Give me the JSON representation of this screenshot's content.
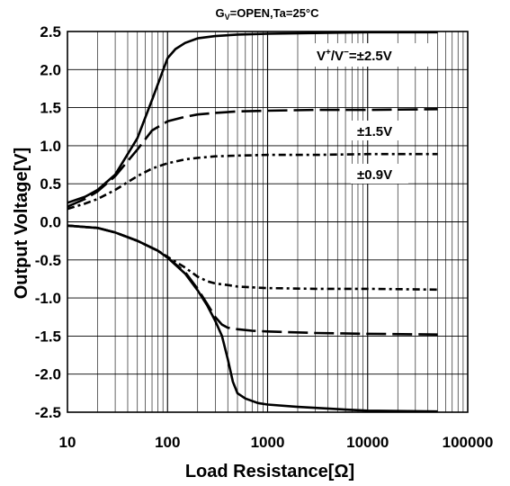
{
  "chart_data": {
    "type": "line",
    "title": "",
    "subtitle_main": "G",
    "subtitle_sub": "V",
    "subtitle_rest": "=OPEN,Ta=25°C",
    "xlabel": "Load Resistance[Ω]",
    "ylabel": "Output Voltage[V]",
    "xscale": "log",
    "xlim": [
      10,
      100000
    ],
    "ylim": [
      -2.5,
      2.5
    ],
    "x_ticks": [
      "10",
      "100",
      "1000",
      "10000",
      "100000"
    ],
    "y_ticks": [
      "2.5",
      "2.0",
      "1.5",
      "1.0",
      "0.5",
      "0.0",
      "-0.5",
      "-1.0",
      "-1.5",
      "-2.0",
      "-2.5"
    ],
    "grid": true,
    "annotations": {
      "supply_prefix": "V",
      "supply_sup1": "+",
      "supply_mid": "/V",
      "supply_sup2": "−",
      "supply_rest": "=±2.5V",
      "label_15": "±1.5V",
      "label_09": "±0.9V"
    },
    "series": [
      {
        "style": "solid",
        "x": [
          10,
          15,
          20,
          30,
          50,
          70,
          100,
          120,
          150,
          200,
          300,
          500,
          1000,
          3000,
          10000,
          50000
        ],
        "y": [
          0.25,
          0.33,
          0.42,
          0.62,
          1.1,
          1.6,
          2.15,
          2.27,
          2.35,
          2.41,
          2.44,
          2.46,
          2.47,
          2.48,
          2.49,
          2.49
        ]
      },
      {
        "style": "solid",
        "x": [
          10,
          20,
          30,
          50,
          80,
          100,
          150,
          200,
          250,
          300,
          350,
          400,
          450,
          500,
          600,
          800,
          1000,
          2000,
          5000,
          10000,
          50000
        ],
        "y": [
          -0.05,
          -0.08,
          -0.14,
          -0.25,
          -0.38,
          -0.47,
          -0.68,
          -0.9,
          -1.1,
          -1.3,
          -1.5,
          -1.8,
          -2.1,
          -2.25,
          -2.32,
          -2.38,
          -2.4,
          -2.43,
          -2.46,
          -2.48,
          -2.49
        ]
      },
      {
        "style": "long-dash",
        "x": [
          10,
          15,
          20,
          30,
          50,
          70,
          100,
          150,
          200,
          300,
          500,
          1000,
          3000,
          10000,
          50000
        ],
        "y": [
          0.2,
          0.3,
          0.4,
          0.6,
          0.95,
          1.2,
          1.32,
          1.38,
          1.41,
          1.43,
          1.45,
          1.46,
          1.47,
          1.47,
          1.48
        ]
      },
      {
        "style": "long-dash",
        "x": [
          10,
          20,
          30,
          50,
          80,
          100,
          150,
          200,
          250,
          300,
          350,
          400,
          500,
          700,
          1000,
          3000,
          10000,
          50000
        ],
        "y": [
          -0.05,
          -0.08,
          -0.14,
          -0.25,
          -0.38,
          -0.47,
          -0.66,
          -0.88,
          -1.08,
          -1.25,
          -1.35,
          -1.39,
          -1.41,
          -1.43,
          -1.44,
          -1.46,
          -1.47,
          -1.48
        ]
      },
      {
        "style": "dash-dot",
        "x": [
          10,
          15,
          20,
          30,
          50,
          70,
          100,
          150,
          200,
          300,
          500,
          1000,
          3000,
          10000,
          50000
        ],
        "y": [
          0.17,
          0.24,
          0.3,
          0.42,
          0.6,
          0.7,
          0.77,
          0.82,
          0.84,
          0.86,
          0.87,
          0.88,
          0.88,
          0.89,
          0.89
        ]
      },
      {
        "style": "dash-dot",
        "x": [
          10,
          20,
          30,
          50,
          80,
          100,
          150,
          200,
          250,
          300,
          400,
          500,
          700,
          1000,
          3000,
          10000,
          50000
        ],
        "y": [
          -0.05,
          -0.08,
          -0.14,
          -0.25,
          -0.38,
          -0.46,
          -0.6,
          -0.72,
          -0.78,
          -0.81,
          -0.83,
          -0.85,
          -0.86,
          -0.87,
          -0.88,
          -0.88,
          -0.89
        ]
      }
    ]
  }
}
